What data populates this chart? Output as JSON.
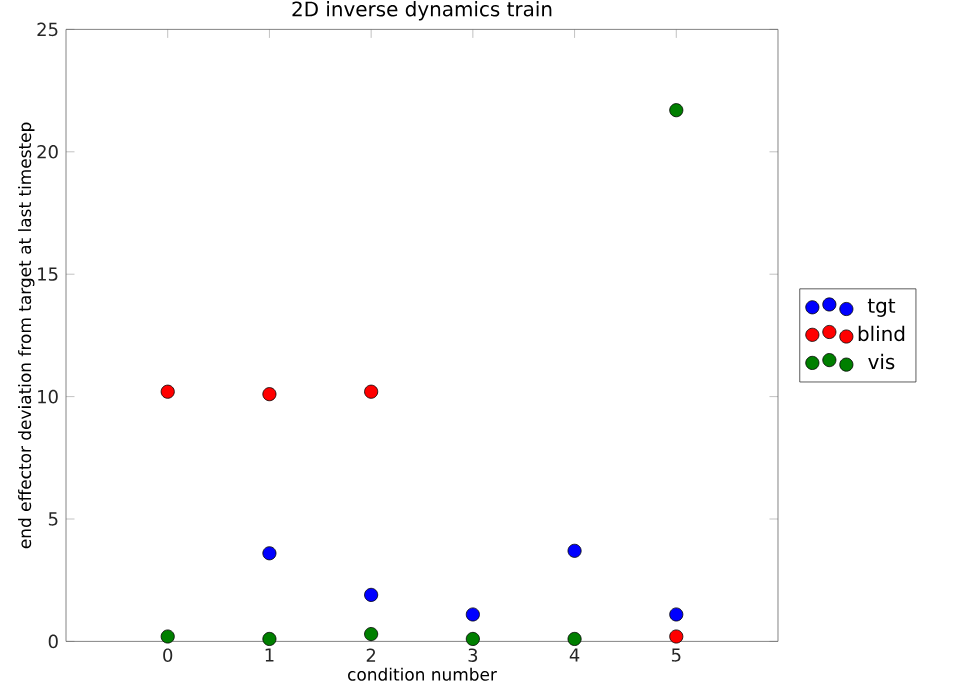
{
  "chart_data": {
    "type": "scatter",
    "title": "2D inverse dynamics train",
    "xlabel": "condition number",
    "ylabel": "end effector deviation from target at last timestep",
    "x": [
      0,
      1,
      2,
      3,
      4,
      5
    ],
    "series": [
      {
        "name": "tgt",
        "color": "#0000ff",
        "values": [
          null,
          3.6,
          1.9,
          1.1,
          3.7,
          1.1
        ]
      },
      {
        "name": "blind",
        "color": "#ff0000",
        "values": [
          10.2,
          10.1,
          10.2,
          null,
          null,
          0.2
        ]
      },
      {
        "name": "vis",
        "color": "#007f00",
        "values": [
          0.2,
          0.1,
          0.3,
          0.1,
          0.1,
          21.7
        ]
      }
    ],
    "xlim": [
      -1,
      6
    ],
    "ylim": [
      0,
      25
    ],
    "xticks": [
      0,
      1,
      2,
      3,
      4,
      5
    ],
    "yticks": [
      0,
      5,
      10,
      15,
      20,
      25
    ],
    "legend": "right",
    "marker": "circle",
    "grid": false
  }
}
